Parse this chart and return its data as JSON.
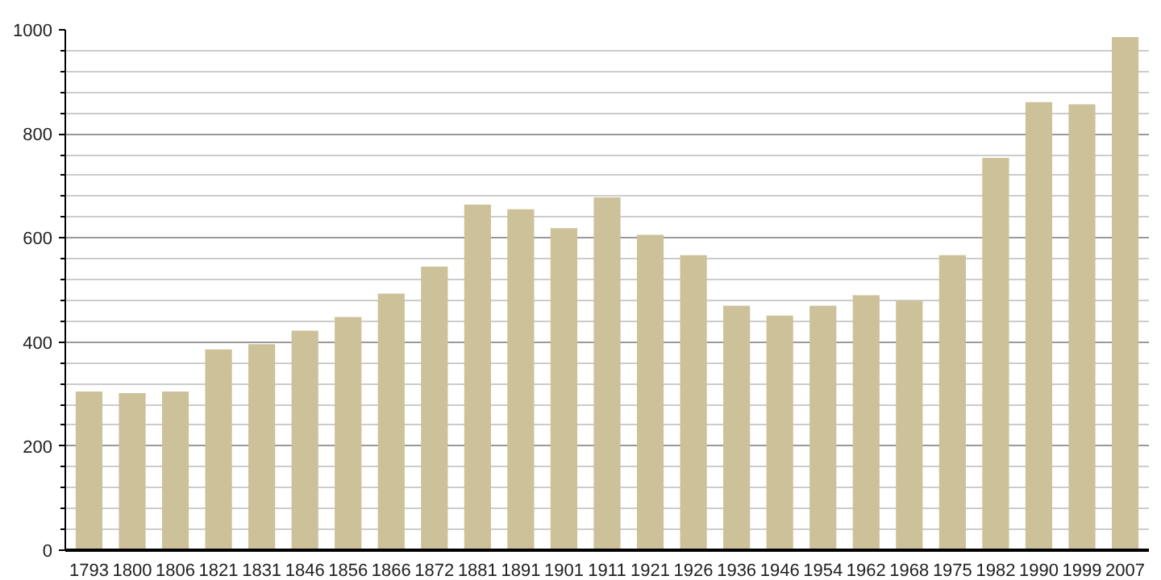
{
  "chart_data": {
    "type": "bar",
    "categories": [
      "1793",
      "1800",
      "1806",
      "1821",
      "1831",
      "1846",
      "1856",
      "1866",
      "1872",
      "1881",
      "1891",
      "1901",
      "1911",
      "1921",
      "1926",
      "1936",
      "1946",
      "1954",
      "1962",
      "1968",
      "1975",
      "1982",
      "1990",
      "1999",
      "2007"
    ],
    "values": [
      305,
      302,
      305,
      386,
      396,
      422,
      448,
      493,
      545,
      664,
      655,
      619,
      678,
      606,
      567,
      470,
      451,
      470,
      490,
      479,
      567,
      754,
      861,
      857,
      986
    ],
    "color": "#ccc199",
    "ylim": [
      0,
      1000
    ],
    "yticks": [
      0,
      200,
      400,
      600,
      800,
      1000
    ],
    "grid": "y"
  }
}
